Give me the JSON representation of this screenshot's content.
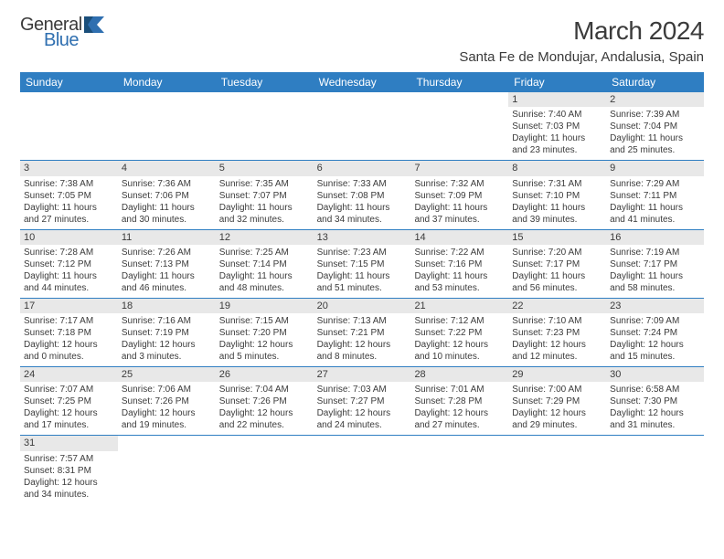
{
  "logo": {
    "text1": "General",
    "text2": "Blue"
  },
  "title": "March 2024",
  "location": "Santa Fe de Mondujar, Andalusia, Spain",
  "colors": {
    "header_bg": "#2f7ec2",
    "header_text": "#ffffff",
    "daynum_bg": "#e8e8e8",
    "text": "#3b3b3b",
    "row_border": "#2f7ec2",
    "logo_accent": "#2f6fb0"
  },
  "day_headers": [
    "Sunday",
    "Monday",
    "Tuesday",
    "Wednesday",
    "Thursday",
    "Friday",
    "Saturday"
  ],
  "weeks": [
    [
      {
        "n": "",
        "empty": true
      },
      {
        "n": "",
        "empty": true
      },
      {
        "n": "",
        "empty": true
      },
      {
        "n": "",
        "empty": true
      },
      {
        "n": "",
        "empty": true
      },
      {
        "n": "1",
        "sr": "Sunrise: 7:40 AM",
        "ss": "Sunset: 7:03 PM",
        "dl": "Daylight: 11 hours and 23 minutes."
      },
      {
        "n": "2",
        "sr": "Sunrise: 7:39 AM",
        "ss": "Sunset: 7:04 PM",
        "dl": "Daylight: 11 hours and 25 minutes."
      }
    ],
    [
      {
        "n": "3",
        "sr": "Sunrise: 7:38 AM",
        "ss": "Sunset: 7:05 PM",
        "dl": "Daylight: 11 hours and 27 minutes."
      },
      {
        "n": "4",
        "sr": "Sunrise: 7:36 AM",
        "ss": "Sunset: 7:06 PM",
        "dl": "Daylight: 11 hours and 30 minutes."
      },
      {
        "n": "5",
        "sr": "Sunrise: 7:35 AM",
        "ss": "Sunset: 7:07 PM",
        "dl": "Daylight: 11 hours and 32 minutes."
      },
      {
        "n": "6",
        "sr": "Sunrise: 7:33 AM",
        "ss": "Sunset: 7:08 PM",
        "dl": "Daylight: 11 hours and 34 minutes."
      },
      {
        "n": "7",
        "sr": "Sunrise: 7:32 AM",
        "ss": "Sunset: 7:09 PM",
        "dl": "Daylight: 11 hours and 37 minutes."
      },
      {
        "n": "8",
        "sr": "Sunrise: 7:31 AM",
        "ss": "Sunset: 7:10 PM",
        "dl": "Daylight: 11 hours and 39 minutes."
      },
      {
        "n": "9",
        "sr": "Sunrise: 7:29 AM",
        "ss": "Sunset: 7:11 PM",
        "dl": "Daylight: 11 hours and 41 minutes."
      }
    ],
    [
      {
        "n": "10",
        "sr": "Sunrise: 7:28 AM",
        "ss": "Sunset: 7:12 PM",
        "dl": "Daylight: 11 hours and 44 minutes."
      },
      {
        "n": "11",
        "sr": "Sunrise: 7:26 AM",
        "ss": "Sunset: 7:13 PM",
        "dl": "Daylight: 11 hours and 46 minutes."
      },
      {
        "n": "12",
        "sr": "Sunrise: 7:25 AM",
        "ss": "Sunset: 7:14 PM",
        "dl": "Daylight: 11 hours and 48 minutes."
      },
      {
        "n": "13",
        "sr": "Sunrise: 7:23 AM",
        "ss": "Sunset: 7:15 PM",
        "dl": "Daylight: 11 hours and 51 minutes."
      },
      {
        "n": "14",
        "sr": "Sunrise: 7:22 AM",
        "ss": "Sunset: 7:16 PM",
        "dl": "Daylight: 11 hours and 53 minutes."
      },
      {
        "n": "15",
        "sr": "Sunrise: 7:20 AM",
        "ss": "Sunset: 7:17 PM",
        "dl": "Daylight: 11 hours and 56 minutes."
      },
      {
        "n": "16",
        "sr": "Sunrise: 7:19 AM",
        "ss": "Sunset: 7:17 PM",
        "dl": "Daylight: 11 hours and 58 minutes."
      }
    ],
    [
      {
        "n": "17",
        "sr": "Sunrise: 7:17 AM",
        "ss": "Sunset: 7:18 PM",
        "dl": "Daylight: 12 hours and 0 minutes."
      },
      {
        "n": "18",
        "sr": "Sunrise: 7:16 AM",
        "ss": "Sunset: 7:19 PM",
        "dl": "Daylight: 12 hours and 3 minutes."
      },
      {
        "n": "19",
        "sr": "Sunrise: 7:15 AM",
        "ss": "Sunset: 7:20 PM",
        "dl": "Daylight: 12 hours and 5 minutes."
      },
      {
        "n": "20",
        "sr": "Sunrise: 7:13 AM",
        "ss": "Sunset: 7:21 PM",
        "dl": "Daylight: 12 hours and 8 minutes."
      },
      {
        "n": "21",
        "sr": "Sunrise: 7:12 AM",
        "ss": "Sunset: 7:22 PM",
        "dl": "Daylight: 12 hours and 10 minutes."
      },
      {
        "n": "22",
        "sr": "Sunrise: 7:10 AM",
        "ss": "Sunset: 7:23 PM",
        "dl": "Daylight: 12 hours and 12 minutes."
      },
      {
        "n": "23",
        "sr": "Sunrise: 7:09 AM",
        "ss": "Sunset: 7:24 PM",
        "dl": "Daylight: 12 hours and 15 minutes."
      }
    ],
    [
      {
        "n": "24",
        "sr": "Sunrise: 7:07 AM",
        "ss": "Sunset: 7:25 PM",
        "dl": "Daylight: 12 hours and 17 minutes."
      },
      {
        "n": "25",
        "sr": "Sunrise: 7:06 AM",
        "ss": "Sunset: 7:26 PM",
        "dl": "Daylight: 12 hours and 19 minutes."
      },
      {
        "n": "26",
        "sr": "Sunrise: 7:04 AM",
        "ss": "Sunset: 7:26 PM",
        "dl": "Daylight: 12 hours and 22 minutes."
      },
      {
        "n": "27",
        "sr": "Sunrise: 7:03 AM",
        "ss": "Sunset: 7:27 PM",
        "dl": "Daylight: 12 hours and 24 minutes."
      },
      {
        "n": "28",
        "sr": "Sunrise: 7:01 AM",
        "ss": "Sunset: 7:28 PM",
        "dl": "Daylight: 12 hours and 27 minutes."
      },
      {
        "n": "29",
        "sr": "Sunrise: 7:00 AM",
        "ss": "Sunset: 7:29 PM",
        "dl": "Daylight: 12 hours and 29 minutes."
      },
      {
        "n": "30",
        "sr": "Sunrise: 6:58 AM",
        "ss": "Sunset: 7:30 PM",
        "dl": "Daylight: 12 hours and 31 minutes."
      }
    ],
    [
      {
        "n": "31",
        "sr": "Sunrise: 7:57 AM",
        "ss": "Sunset: 8:31 PM",
        "dl": "Daylight: 12 hours and 34 minutes."
      },
      {
        "n": "",
        "empty": true
      },
      {
        "n": "",
        "empty": true
      },
      {
        "n": "",
        "empty": true
      },
      {
        "n": "",
        "empty": true
      },
      {
        "n": "",
        "empty": true
      },
      {
        "n": "",
        "empty": true
      }
    ]
  ]
}
